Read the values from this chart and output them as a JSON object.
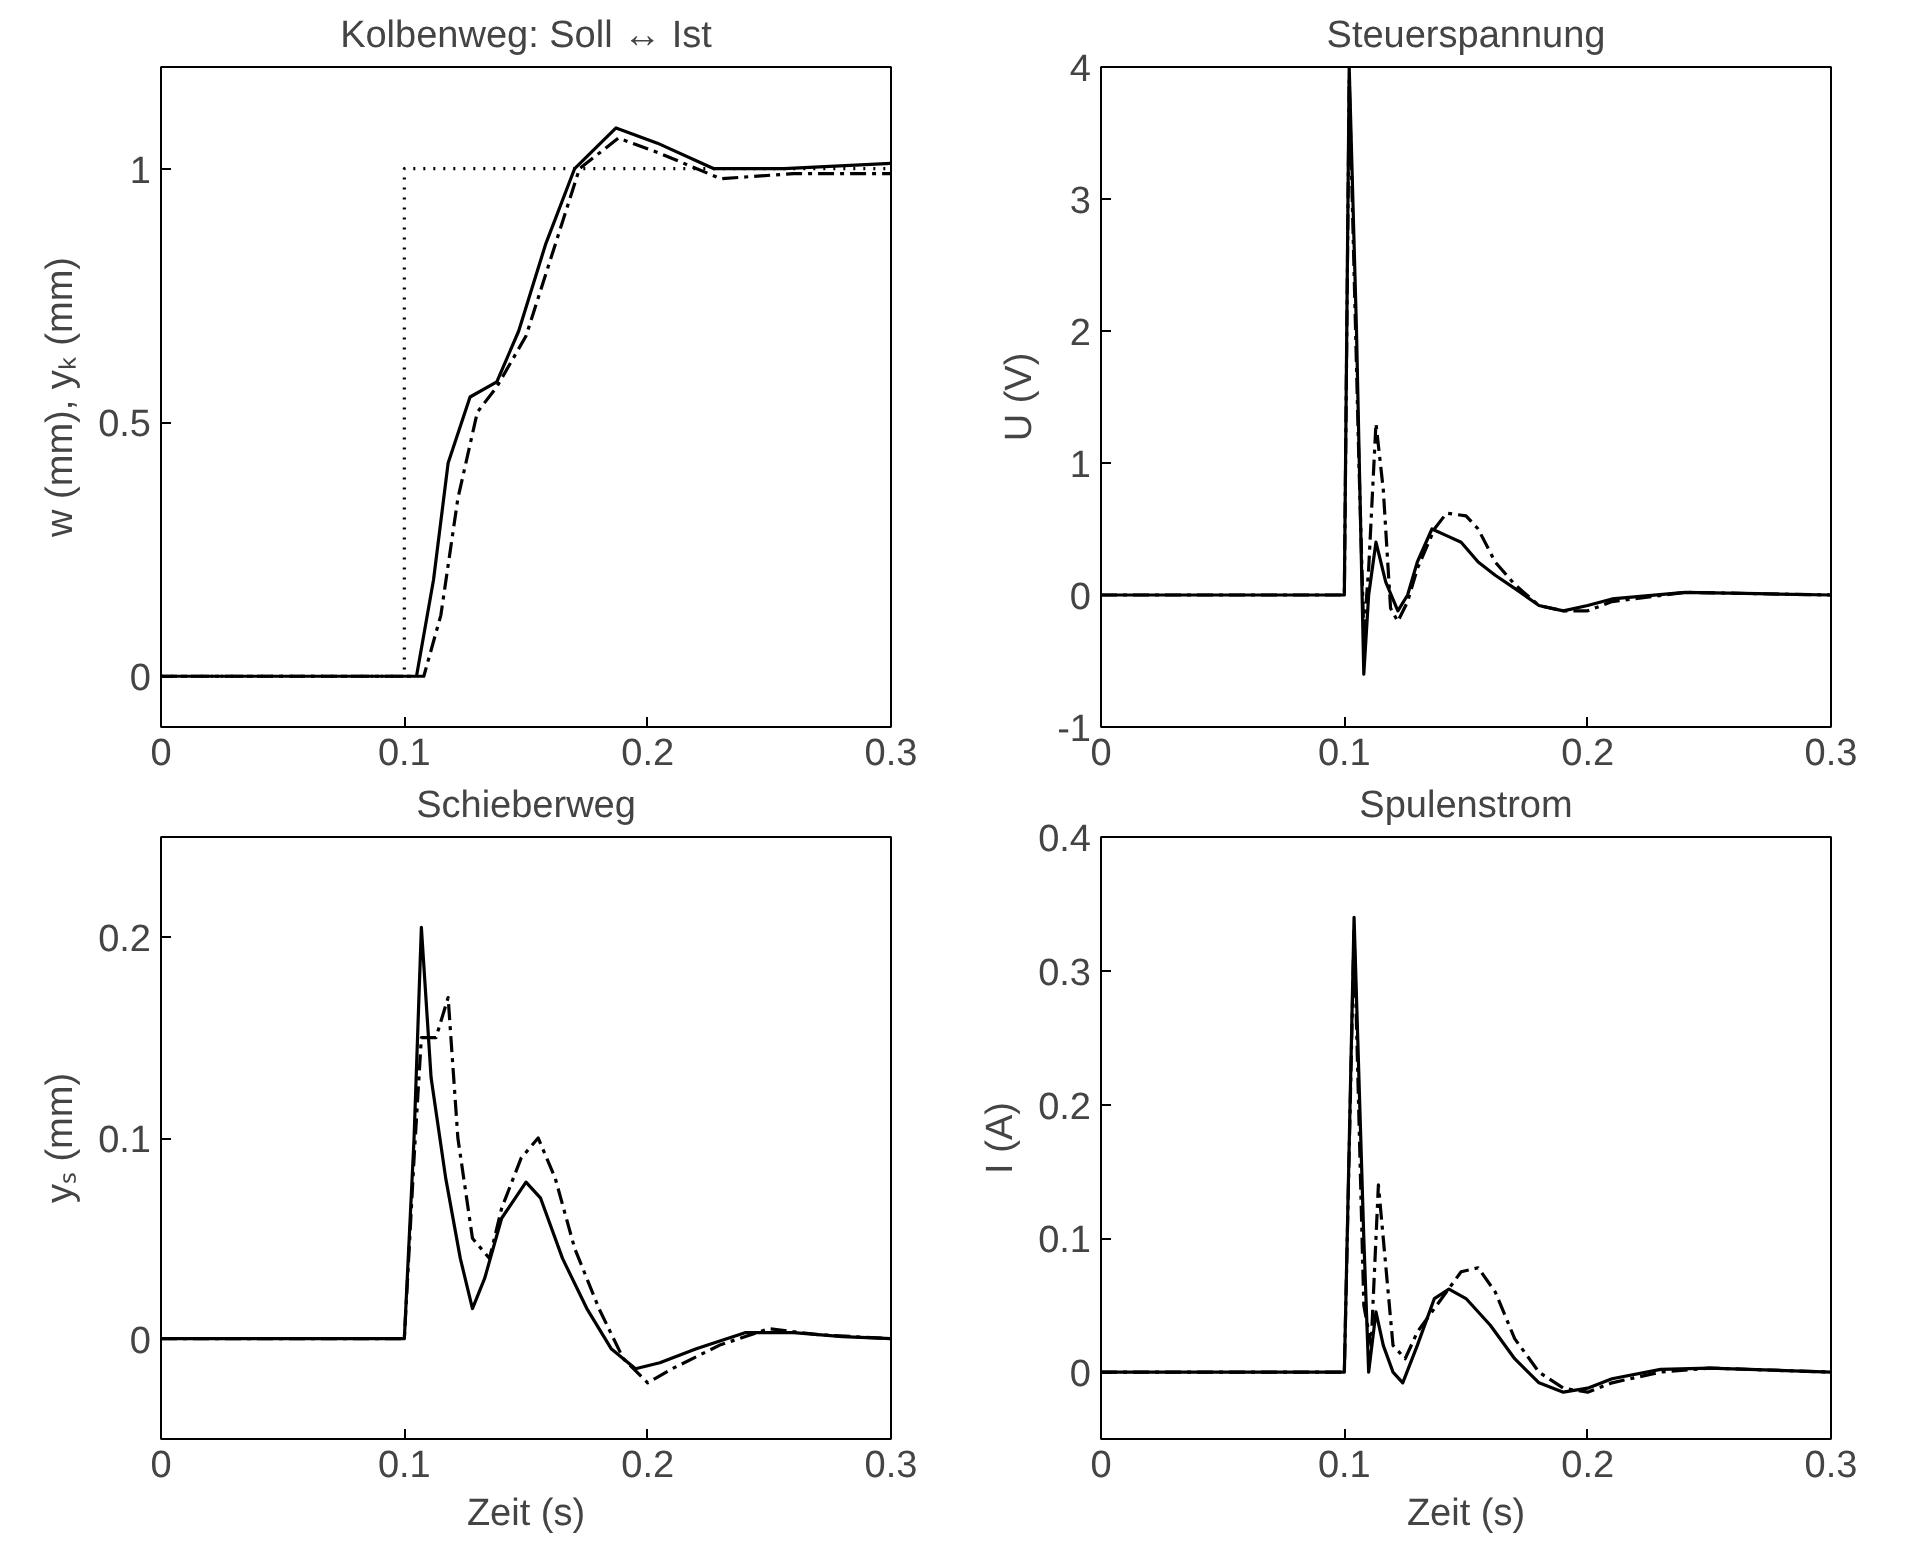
{
  "chart_data": [
    {
      "type": "line",
      "title": "Kolbenweg: Soll ↔ Ist",
      "ylabel": "w (mm), yₖ (mm)",
      "xlim": [
        0,
        0.3
      ],
      "xticks": [
        0,
        0.1,
        0.2,
        0.3
      ],
      "ylim": [
        -0.1,
        1.2
      ],
      "yticks": [
        0,
        0.5,
        1
      ],
      "series": [
        {
          "color": "#000000",
          "line_style": "dotted",
          "x": [
            0,
            0.1,
            0.1,
            0.3
          ],
          "values": [
            0,
            0,
            1,
            1
          ]
        },
        {
          "color": "#000000",
          "line_style": "solid",
          "x": [
            0,
            0.1,
            0.105,
            0.112,
            0.118,
            0.127,
            0.138,
            0.147,
            0.158,
            0.17,
            0.187,
            0.204,
            0.227,
            0.256,
            0.3
          ],
          "values": [
            0,
            0,
            0,
            0.19,
            0.42,
            0.55,
            0.58,
            0.68,
            0.85,
            1.0,
            1.08,
            1.05,
            1.0,
            1.0,
            1.01
          ]
        },
        {
          "color": "#000000",
          "line_style": "dashed",
          "x": [
            0,
            0.1,
            0.108,
            0.115,
            0.122,
            0.13,
            0.138,
            0.15,
            0.162,
            0.172,
            0.188,
            0.205,
            0.23,
            0.26,
            0.3
          ],
          "values": [
            0,
            0,
            0,
            0.12,
            0.35,
            0.52,
            0.57,
            0.67,
            0.85,
            1.0,
            1.06,
            1.03,
            0.98,
            0.99,
            0.99
          ]
        }
      ]
    },
    {
      "type": "line",
      "title": "Steuerspannung",
      "ylabel": "U (V)",
      "xlim": [
        0,
        0.3
      ],
      "xticks": [
        0,
        0.1,
        0.2,
        0.3
      ],
      "ylim": [
        -1,
        4
      ],
      "yticks": [
        -1,
        0,
        1,
        2,
        3,
        4
      ],
      "series": [
        {
          "color": "#000000",
          "line_style": "solid",
          "x": [
            0,
            0.1,
            0.102,
            0.105,
            0.108,
            0.11,
            0.113,
            0.117,
            0.122,
            0.126,
            0.13,
            0.136,
            0.142,
            0.148,
            0.155,
            0.162,
            0.17,
            0.18,
            0.19,
            0.2,
            0.21,
            0.24,
            0.27,
            0.3
          ],
          "values": [
            0,
            0,
            4.0,
            2.0,
            -0.6,
            0.0,
            0.4,
            0.1,
            -0.12,
            0.0,
            0.25,
            0.5,
            0.45,
            0.4,
            0.25,
            0.15,
            0.05,
            -0.08,
            -0.12,
            -0.08,
            -0.03,
            0.02,
            0.01,
            0
          ]
        },
        {
          "color": "#000000",
          "line_style": "dashed",
          "x": [
            0,
            0.1,
            0.102,
            0.106,
            0.108,
            0.11,
            0.113,
            0.116,
            0.119,
            0.122,
            0.126,
            0.13,
            0.137,
            0.142,
            0.15,
            0.155,
            0.162,
            0.17,
            0.18,
            0.19,
            0.2,
            0.21,
            0.24,
            0.3
          ],
          "values": [
            0,
            0,
            3.9,
            1.0,
            -0.3,
            0.2,
            1.3,
            0.8,
            -0.1,
            -0.2,
            -0.05,
            0.2,
            0.5,
            0.62,
            0.6,
            0.5,
            0.25,
            0.08,
            -0.08,
            -0.12,
            -0.12,
            -0.05,
            0.02,
            0
          ]
        }
      ]
    },
    {
      "type": "line",
      "title": "Schieberweg",
      "xlabel": "Zeit (s)",
      "ylabel": "yₛ (mm)",
      "xlim": [
        0,
        0.3
      ],
      "xticks": [
        0,
        0.1,
        0.2,
        0.3
      ],
      "ylim": [
        -0.05,
        0.25
      ],
      "yticks": [
        0,
        0.1,
        0.2
      ],
      "series": [
        {
          "color": "#000000",
          "line_style": "solid",
          "x": [
            0,
            0.1,
            0.104,
            0.107,
            0.111,
            0.117,
            0.123,
            0.128,
            0.133,
            0.14,
            0.15,
            0.156,
            0.165,
            0.175,
            0.185,
            0.195,
            0.205,
            0.22,
            0.24,
            0.26,
            0.28,
            0.3
          ],
          "values": [
            0,
            0,
            0.1,
            0.205,
            0.13,
            0.08,
            0.04,
            0.015,
            0.03,
            0.06,
            0.078,
            0.07,
            0.04,
            0.015,
            -0.005,
            -0.015,
            -0.012,
            -0.005,
            0.003,
            0.003,
            0.001,
            0
          ]
        },
        {
          "color": "#000000",
          "line_style": "dashed",
          "x": [
            0,
            0.1,
            0.104,
            0.107,
            0.113,
            0.118,
            0.122,
            0.128,
            0.135,
            0.14,
            0.148,
            0.155,
            0.162,
            0.17,
            0.18,
            0.19,
            0.2,
            0.21,
            0.23,
            0.25,
            0.27,
            0.3
          ],
          "values": [
            0,
            0,
            0.09,
            0.15,
            0.15,
            0.17,
            0.1,
            0.05,
            0.04,
            0.065,
            0.09,
            0.1,
            0.08,
            0.045,
            0.015,
            -0.01,
            -0.022,
            -0.015,
            -0.003,
            0.005,
            0.002,
            0
          ]
        }
      ]
    },
    {
      "type": "line",
      "title": "Spulenstrom",
      "xlabel": "Zeit (s)",
      "ylabel": "I (A)",
      "xlim": [
        0,
        0.3
      ],
      "xticks": [
        0,
        0.1,
        0.2,
        0.3
      ],
      "ylim": [
        -0.05,
        0.4
      ],
      "yticks": [
        0,
        0.1,
        0.2,
        0.3,
        0.4
      ],
      "series": [
        {
          "color": "#000000",
          "line_style": "solid",
          "x": [
            0,
            0.1,
            0.104,
            0.108,
            0.11,
            0.113,
            0.116,
            0.12,
            0.124,
            0.13,
            0.137,
            0.143,
            0.15,
            0.16,
            0.17,
            0.18,
            0.19,
            0.2,
            0.21,
            0.23,
            0.25,
            0.3
          ],
          "values": [
            0,
            0,
            0.34,
            0.1,
            0.0,
            0.045,
            0.02,
            0.0,
            -0.008,
            0.02,
            0.055,
            0.062,
            0.055,
            0.035,
            0.01,
            -0.008,
            -0.015,
            -0.012,
            -0.005,
            0.002,
            0.003,
            0
          ]
        },
        {
          "color": "#000000",
          "line_style": "dashed",
          "x": [
            0,
            0.1,
            0.104,
            0.108,
            0.111,
            0.114,
            0.117,
            0.12,
            0.125,
            0.13,
            0.14,
            0.148,
            0.155,
            0.162,
            0.17,
            0.18,
            0.19,
            0.2,
            0.21,
            0.23,
            0.25,
            0.3
          ],
          "values": [
            0,
            0,
            0.33,
            0.05,
            0.02,
            0.14,
            0.08,
            0.02,
            0.01,
            0.03,
            0.055,
            0.075,
            0.078,
            0.06,
            0.025,
            0.0,
            -0.012,
            -0.015,
            -0.008,
            0.0,
            0.003,
            0
          ]
        }
      ]
    }
  ]
}
